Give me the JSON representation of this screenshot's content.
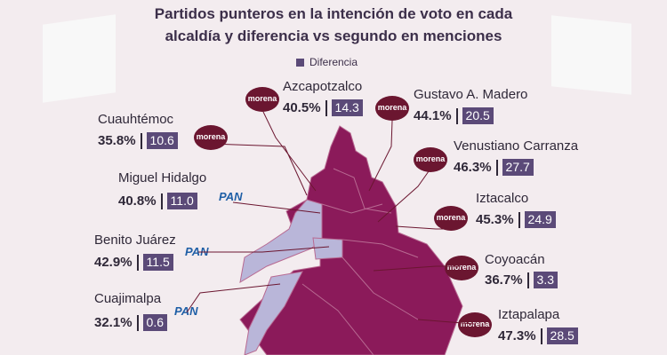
{
  "title_line1": "Partidos punteros en la intención de voto en cada",
  "title_line2": "alcaldía y diferencia vs segundo en menciones",
  "legend_label": "Diferencia",
  "colors": {
    "morena": "#8b1a5a",
    "pan": "#b9b6d9",
    "diff": "#5b4a78",
    "badge": "#6b1630"
  },
  "chart_data": {
    "type": "table",
    "title": "Partidos punteros en la intención de voto en cada alcaldía y diferencia vs segundo en menciones",
    "columns": [
      "alcaldia",
      "partido",
      "intencion_pct",
      "diferencia"
    ],
    "rows": [
      {
        "alcaldia": "Azcapotzalco",
        "partido": "morena",
        "valor": "40.5%",
        "diferencia": "14.3"
      },
      {
        "alcaldia": "Gustavo A. Madero",
        "partido": "morena",
        "valor": "44.1%",
        "diferencia": "20.5"
      },
      {
        "alcaldia": "Cuauhtémoc",
        "partido": "morena",
        "valor": "35.8%",
        "diferencia": "10.6"
      },
      {
        "alcaldia": "Venustiano Carranza",
        "partido": "morena",
        "valor": "46.3%",
        "diferencia": "27.7"
      },
      {
        "alcaldia": "Miguel Hidalgo",
        "partido": "PAN",
        "valor": "40.8%",
        "diferencia": "11.0"
      },
      {
        "alcaldia": "Iztacalco",
        "partido": "morena",
        "valor": "45.3%",
        "diferencia": "24.9"
      },
      {
        "alcaldia": "Benito Juárez",
        "partido": "PAN",
        "valor": "42.9%",
        "diferencia": "11.5"
      },
      {
        "alcaldia": "Coyoacán",
        "partido": "morena",
        "valor": "36.7%",
        "diferencia": "3.3"
      },
      {
        "alcaldia": "Cuajimalpa",
        "partido": "PAN",
        "valor": "32.1%",
        "diferencia": "0.6"
      },
      {
        "alcaldia": "Iztapalapa",
        "partido": "morena",
        "valor": "47.3%",
        "diferencia": "28.5"
      }
    ]
  }
}
